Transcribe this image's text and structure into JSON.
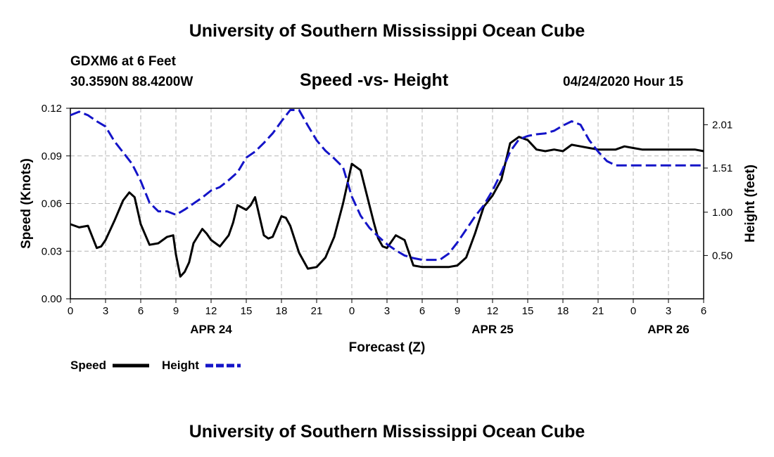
{
  "header": {
    "title": "University of Southern Mississippi Ocean Cube",
    "station": "GDXM6 at 6 Feet",
    "coords": "30.3590N 88.4200W",
    "subtitle": "Speed -vs- Height",
    "datetime": "04/24/2020 Hour 15"
  },
  "footer": {
    "title": "University of Southern Mississippi Ocean Cube"
  },
  "legend": {
    "speed_label": "Speed",
    "height_label": "Height"
  },
  "chart_data": {
    "type": "line",
    "title": "Speed -vs- Height",
    "xlabel": "Forecast (Z)",
    "ylabel": "Speed (Knots)",
    "ylabel_right": "Height (feet)",
    "x_hours_from_apr24_00z": [
      0,
      72
    ],
    "x_tick_labels": [
      "0",
      "3",
      "6",
      "9",
      "12",
      "15",
      "18",
      "21",
      "0",
      "3",
      "6",
      "9",
      "12",
      "15",
      "18",
      "21",
      "0",
      "3",
      "6"
    ],
    "day_labels": [
      {
        "label": "APR 24",
        "hour": 16
      },
      {
        "label": "APR 25",
        "hour": 48
      },
      {
        "label": "APR 26",
        "hour": 68
      }
    ],
    "ylim": [
      0,
      0.12
    ],
    "y_ticks": [
      "0.00",
      "0.03",
      "0.06",
      "0.09",
      "0.12"
    ],
    "ylim_right": [
      0.0,
      2.2
    ],
    "y_ticks_right": [
      0.5,
      1.0,
      1.51,
      2.01
    ],
    "grid": true,
    "colors": {
      "speed": "#000000",
      "height": "#1414c8"
    },
    "series": [
      {
        "name": "Speed",
        "style": "solid",
        "axis": "left",
        "x": [
          0,
          1,
          2,
          3,
          3.5,
          4,
          5,
          6,
          6.7,
          7.3,
          8,
          9,
          10,
          11,
          11.7,
          12,
          12.5,
          13,
          13.5,
          14,
          15,
          15.5,
          16,
          17,
          18,
          18.5,
          19,
          20,
          20.5,
          21,
          22,
          22.5,
          23,
          24,
          24.5,
          25,
          26,
          27,
          28,
          29,
          30,
          31,
          32,
          33,
          34,
          34.5,
          35,
          35.5,
          36,
          37,
          38,
          39,
          40,
          41,
          42,
          43,
          44,
          45,
          46,
          47,
          48,
          49,
          50,
          51,
          52,
          53,
          54,
          55,
          56,
          57,
          58,
          59,
          60,
          61,
          62,
          63,
          64,
          65,
          66,
          67,
          68,
          69,
          70,
          71,
          72
        ],
        "values": [
          0.047,
          0.045,
          0.046,
          0.032,
          0.033,
          0.037,
          0.049,
          0.062,
          0.067,
          0.064,
          0.047,
          0.034,
          0.035,
          0.039,
          0.04,
          0.028,
          0.014,
          0.017,
          0.023,
          0.035,
          0.044,
          0.041,
          0.037,
          0.033,
          0.04,
          0.048,
          0.059,
          0.056,
          0.059,
          0.064,
          0.04,
          0.038,
          0.039,
          0.052,
          0.051,
          0.046,
          0.029,
          0.019,
          0.02,
          0.026,
          0.039,
          0.06,
          0.085,
          0.081,
          0.059,
          0.048,
          0.038,
          0.033,
          0.032,
          0.04,
          0.037,
          0.021,
          0.02,
          0.02,
          0.02,
          0.02,
          0.021,
          0.026,
          0.041,
          0.058,
          0.065,
          0.075,
          0.098,
          0.102,
          0.1,
          0.094,
          0.093,
          0.094,
          0.093,
          0.097,
          0.096,
          0.095,
          0.094,
          0.094,
          0.094,
          0.096,
          0.095,
          0.094,
          0.094,
          0.094,
          0.094,
          0.094,
          0.094,
          0.094,
          0.093
        ]
      },
      {
        "name": "Height",
        "style": "dashed",
        "axis": "right",
        "x": [
          0,
          1,
          2,
          3,
          4,
          5,
          6,
          7,
          8,
          9,
          10,
          11,
          12,
          13,
          14,
          15,
          16,
          17,
          18,
          19,
          20,
          21,
          22,
          23,
          24,
          25,
          26,
          27,
          28,
          29,
          30,
          31,
          32,
          33,
          34,
          35,
          36,
          37,
          38,
          39,
          40,
          41,
          42,
          43,
          44,
          45,
          46,
          47,
          48,
          49,
          50,
          51,
          52,
          53,
          54,
          55,
          56,
          57,
          58,
          59,
          60,
          61,
          62,
          63,
          64,
          65,
          66,
          67,
          68,
          69,
          70,
          71,
          72
        ],
        "values": [
          2.12,
          2.16,
          2.12,
          2.05,
          1.99,
          1.82,
          1.69,
          1.56,
          1.36,
          1.11,
          1.01,
          1.01,
          0.97,
          1.03,
          1.1,
          1.17,
          1.25,
          1.29,
          1.37,
          1.46,
          1.63,
          1.7,
          1.8,
          1.91,
          2.05,
          2.18,
          2.18,
          2.0,
          1.83,
          1.71,
          1.62,
          1.52,
          1.18,
          0.96,
          0.82,
          0.72,
          0.63,
          0.56,
          0.5,
          0.47,
          0.45,
          0.45,
          0.45,
          0.52,
          0.65,
          0.8,
          0.95,
          1.08,
          1.25,
          1.46,
          1.7,
          1.84,
          1.88,
          1.9,
          1.91,
          1.94,
          2.0,
          2.05,
          2.01,
          1.83,
          1.7,
          1.59,
          1.54,
          1.54,
          1.54,
          1.54,
          1.54,
          1.54,
          1.54,
          1.54,
          1.54,
          1.54,
          1.54
        ]
      }
    ]
  }
}
